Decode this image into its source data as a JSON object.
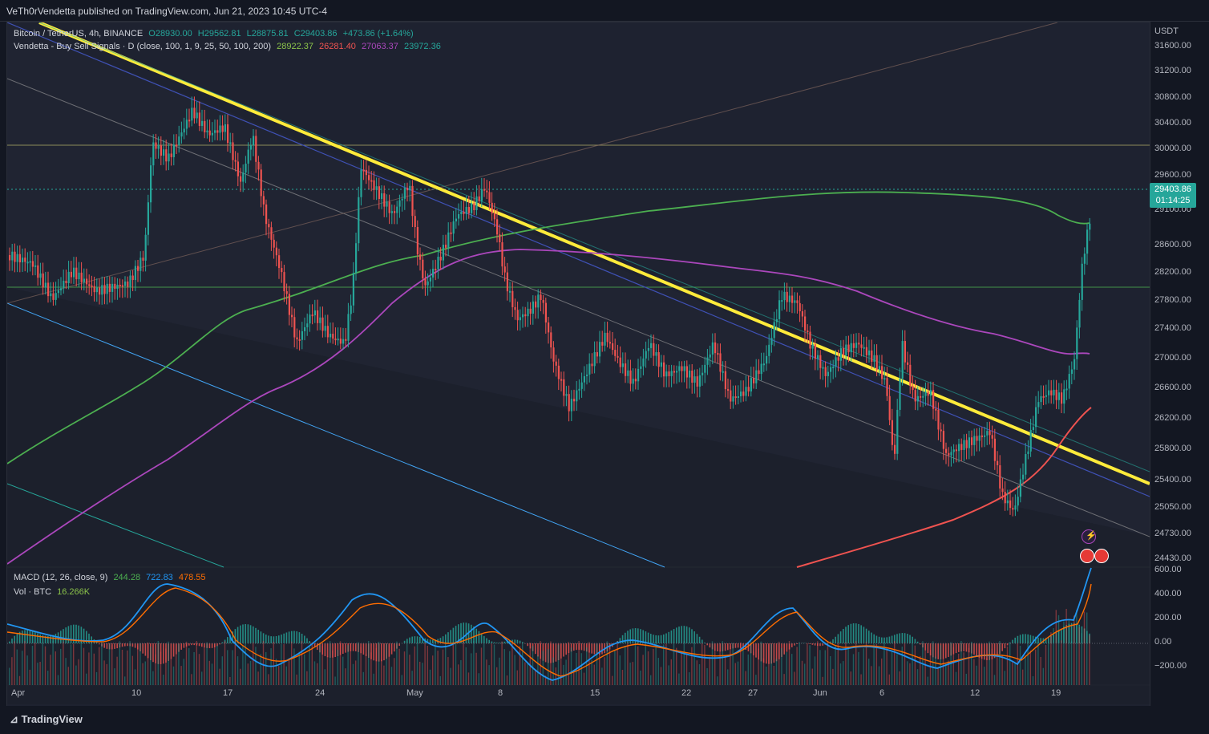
{
  "header": {
    "publisher": "VeTh0rVendetta published on TradingView.com, Jun 21, 2023 10:45 UTC-4"
  },
  "legend": {
    "symbol": "Bitcoin / TetherUS, 4h, BINANCE",
    "open": "O28930.00",
    "high": "H29562.81",
    "low": "L28875.81",
    "close": "C29403.86",
    "change": "+473.86 (+1.64%)",
    "indicator": "Vendetta - Buy Sell Signals · D (close, 100, 1, 9, 25, 50, 100, 200)",
    "ind_values": [
      "28922.37",
      "26281.40",
      "27063.37",
      "23972.36"
    ],
    "macd_label": "MACD (12, 26, close, 9)",
    "macd_values": [
      "244.28",
      "722.83",
      "478.55"
    ],
    "vol_label": "Vol · BTC",
    "vol_value": "16.266K"
  },
  "price_axis": {
    "currency": "USDT",
    "ticks": [
      "31600.00",
      "31200.00",
      "30800.00",
      "30400.00",
      "30000.00",
      "29600.00",
      "29100.00",
      "28600.00",
      "28200.00",
      "27800.00",
      "27400.00",
      "27000.00",
      "26600.00",
      "26200.00",
      "25800.00",
      "25400.00",
      "25050.00",
      "24730.00",
      "24430.00"
    ]
  },
  "last_price": {
    "price": "29403.86",
    "countdown": "01:14:25"
  },
  "macd_axis": {
    "ticks": [
      "600.00",
      "400.00",
      "200.00",
      "0.00",
      "−200.00"
    ]
  },
  "time_axis": {
    "ticks": [
      "Apr",
      "10",
      "17",
      "24",
      "May",
      "8",
      "15",
      "22",
      "27",
      "Jun",
      "6",
      "12",
      "19"
    ]
  },
  "colors": {
    "background": "#1e2230",
    "trendline": "#ffeb3b",
    "ma_green": "#4caf50",
    "ma_purple": "#ab47bc",
    "ma_red": "#ef5350",
    "candle_up": "#26a69a",
    "candle_down": "#ef5350",
    "macd_line": "#2196f3",
    "signal_line": "#ff6d00"
  },
  "footer": {
    "brand": "TradingView"
  }
}
